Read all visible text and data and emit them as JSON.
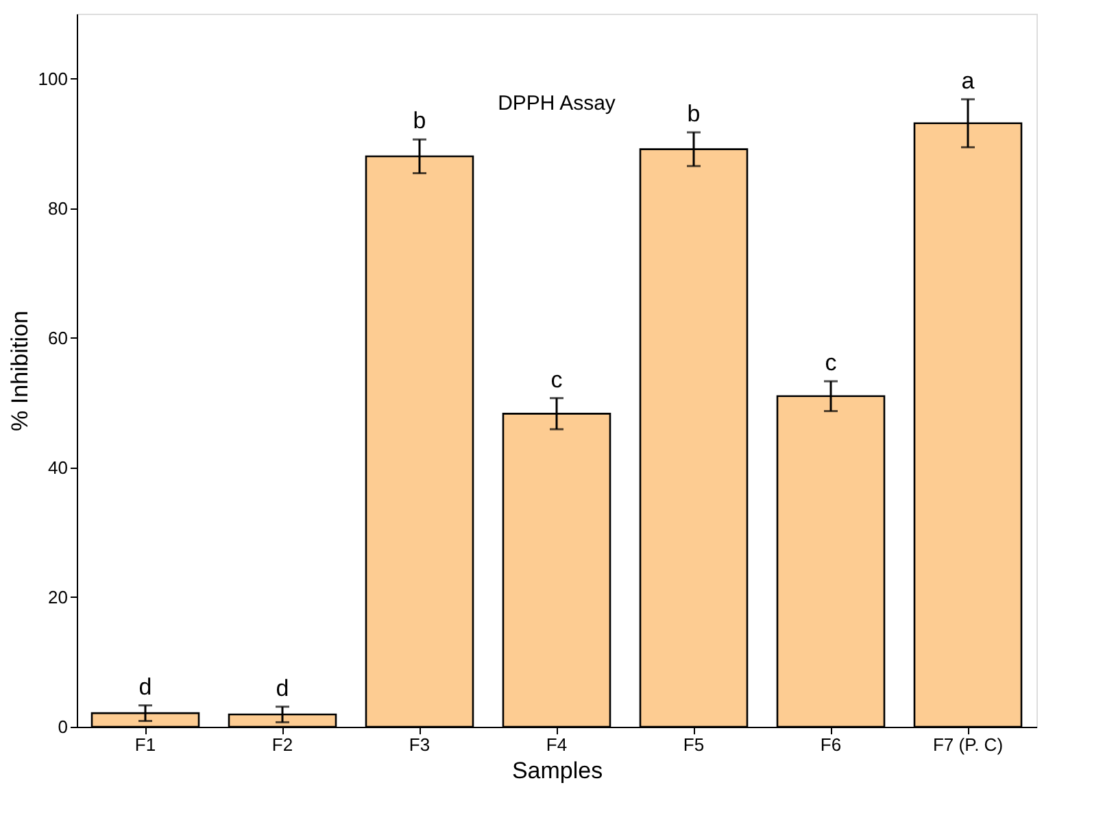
{
  "chart_data": {
    "type": "bar",
    "title": "DPPH Assay",
    "xlabel": "Samples",
    "ylabel": "% Inhibition",
    "categories": [
      "F1",
      "F2",
      "F3",
      "F4",
      "F5",
      "F6",
      "F7 (P. C)"
    ],
    "values": [
      2.1,
      1.9,
      88.0,
      48.3,
      89.1,
      51.0,
      93.1
    ],
    "errors": [
      1.2,
      1.2,
      2.6,
      2.4,
      2.6,
      2.3,
      3.7
    ],
    "color": "#fdcc92",
    "ylim": [
      0,
      110
    ],
    "yticks": [
      0,
      20,
      40,
      60,
      80,
      100
    ],
    "grid": false,
    "annotations": [
      "d",
      "d",
      "b",
      "c",
      "b",
      "c",
      "a"
    ]
  }
}
